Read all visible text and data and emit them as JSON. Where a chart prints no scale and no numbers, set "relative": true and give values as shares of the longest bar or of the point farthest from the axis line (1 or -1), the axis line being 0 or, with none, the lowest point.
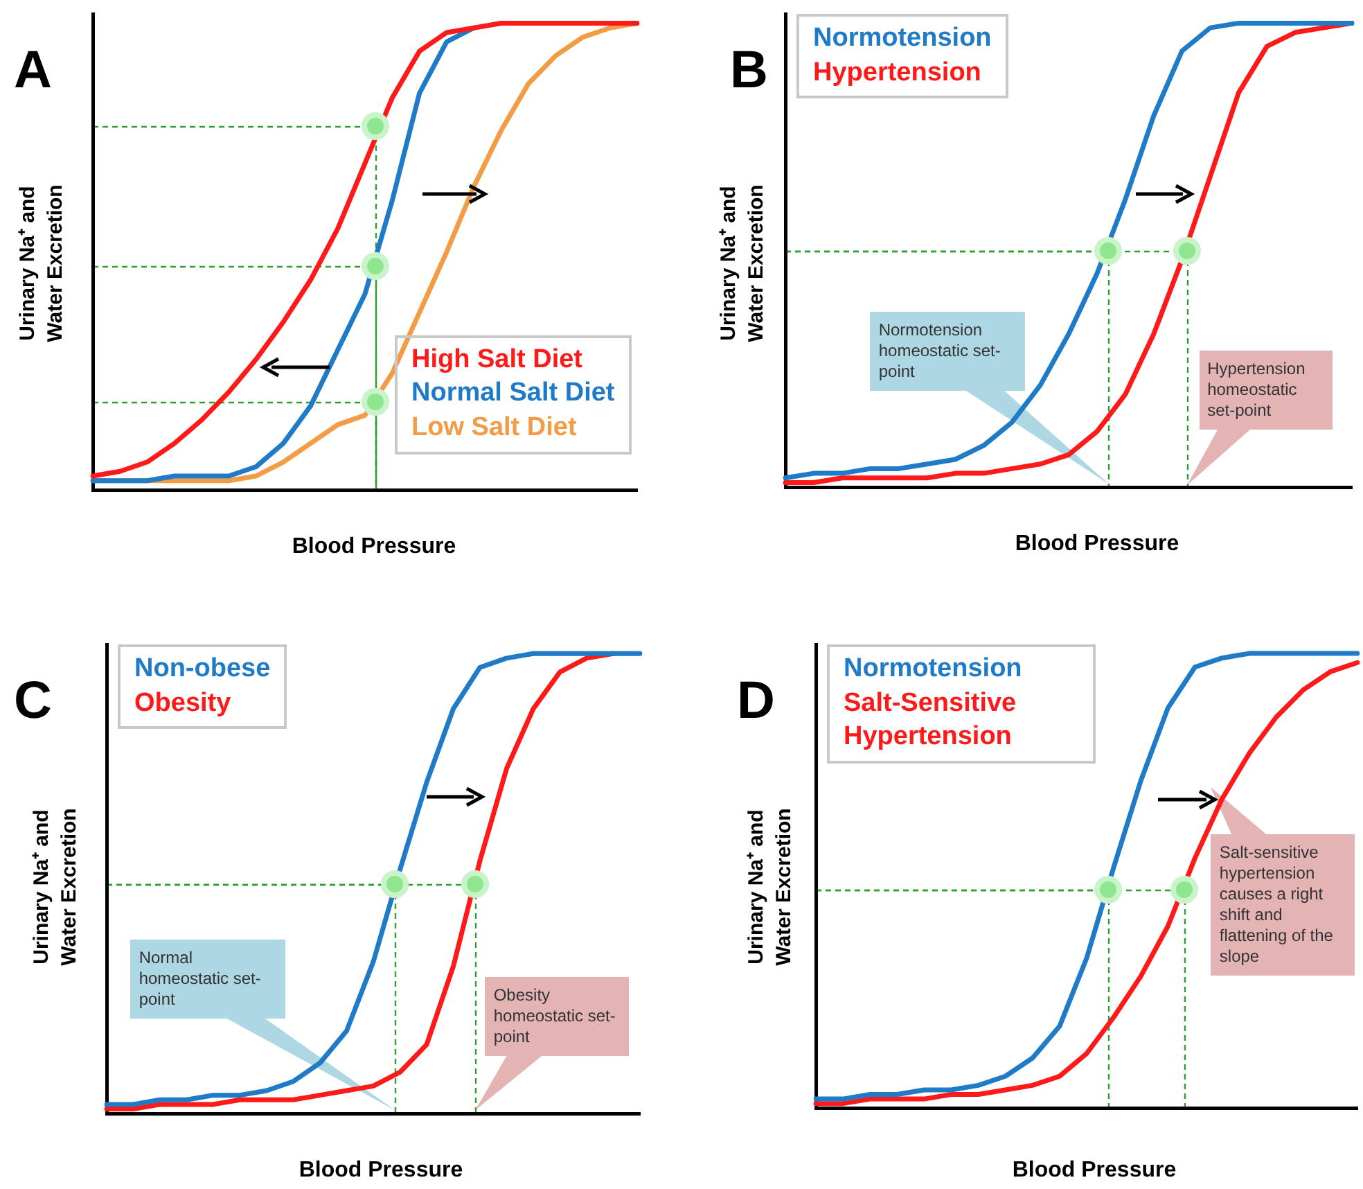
{
  "chart_data": [
    {
      "type": "line",
      "title": "A",
      "xlabel": "Blood Pressure",
      "ylabel": "Urinary Na⁺ and Water Excretion",
      "relative": true,
      "categories": [
        null,
        null,
        null,
        null,
        null,
        null,
        null,
        null,
        null,
        null,
        null,
        null,
        null,
        null,
        null,
        null,
        null,
        null,
        null,
        null,
        null
      ],
      "series": [
        {
          "name": "High Salt Diet",
          "color": "#ff1a1a",
          "values": [
            0.03,
            0.04,
            0.06,
            0.1,
            0.15,
            0.21,
            0.28,
            0.36,
            0.45,
            0.56,
            0.7,
            0.84,
            0.94,
            0.98,
            0.99,
            1,
            1,
            1,
            1,
            1,
            1
          ]
        },
        {
          "name": "Normal Salt Diet",
          "color": "#1f7bc8",
          "values": [
            0.02,
            0.02,
            0.02,
            0.03,
            0.03,
            0.03,
            0.05,
            0.1,
            0.18,
            0.3,
            0.42,
            0.62,
            0.85,
            0.96,
            0.99,
            null,
            null,
            null,
            null,
            null,
            null
          ]
        },
        {
          "name": "Low Salt Diet",
          "color": "#f39c45",
          "values": [
            0.02,
            0.02,
            0.02,
            0.02,
            0.02,
            0.02,
            0.03,
            0.06,
            0.1,
            0.14,
            0.16,
            0.25,
            0.38,
            0.51,
            0.65,
            0.77,
            0.87,
            0.93,
            0.97,
            0.99,
            1
          ]
        }
      ]
    },
    {
      "type": "line",
      "title": "B",
      "xlabel": "Blood Pressure",
      "ylabel": "Urinary Na⁺ and Water Excretion",
      "relative": true,
      "categories": [
        null,
        null,
        null,
        null,
        null,
        null,
        null,
        null,
        null,
        null,
        null,
        null,
        null,
        null,
        null,
        null,
        null,
        null,
        null,
        null,
        null
      ],
      "series": [
        {
          "name": "Normotension",
          "color": "#1f7bc8",
          "values": [
            0.02,
            0.03,
            0.03,
            0.04,
            0.04,
            0.05,
            0.06,
            0.09,
            0.14,
            0.22,
            0.33,
            0.46,
            0.62,
            0.8,
            0.94,
            0.99,
            1,
            1,
            1,
            1,
            1
          ]
        },
        {
          "name": "Hypertension",
          "color": "#ff1a1a",
          "values": [
            0.01,
            0.01,
            0.02,
            0.02,
            0.02,
            0.02,
            0.03,
            0.03,
            0.04,
            0.05,
            0.07,
            0.12,
            0.2,
            0.33,
            0.49,
            0.67,
            0.85,
            0.95,
            0.98,
            0.99,
            1
          ]
        }
      ],
      "annotations": [
        "Normotension homeostatic set-point",
        "Hypertension homeostatic set-point"
      ]
    },
    {
      "type": "line",
      "title": "C",
      "xlabel": "Blood Pressure",
      "ylabel": "Urinary Na⁺ and Water Excretion",
      "relative": true,
      "categories": [
        null,
        null,
        null,
        null,
        null,
        null,
        null,
        null,
        null,
        null,
        null,
        null,
        null,
        null,
        null,
        null,
        null,
        null,
        null,
        null,
        null
      ],
      "series": [
        {
          "name": "Non-obese",
          "color": "#1f7bc8",
          "values": [
            0.02,
            0.02,
            0.03,
            0.03,
            0.04,
            0.04,
            0.05,
            0.07,
            0.11,
            0.18,
            0.33,
            0.53,
            0.72,
            0.88,
            0.97,
            0.99,
            1,
            1,
            1,
            1,
            1
          ]
        },
        {
          "name": "Obesity",
          "color": "#ff1a1a",
          "values": [
            0.01,
            0.01,
            0.02,
            0.02,
            0.02,
            0.03,
            0.03,
            0.03,
            0.04,
            0.05,
            0.06,
            0.09,
            0.15,
            0.32,
            0.55,
            0.75,
            0.88,
            0.96,
            0.99,
            1,
            null
          ]
        }
      ],
      "annotations": [
        "Normal homeostatic set-point",
        "Obesity homeostatic set-point"
      ]
    },
    {
      "type": "line",
      "title": "D",
      "xlabel": "Blood Pressure",
      "ylabel": "Urinary Na⁺ and Water Excretion",
      "relative": true,
      "categories": [
        null,
        null,
        null,
        null,
        null,
        null,
        null,
        null,
        null,
        null,
        null,
        null,
        null,
        null,
        null,
        null,
        null,
        null,
        null,
        null,
        null
      ],
      "series": [
        {
          "name": "Normotension",
          "color": "#1f7bc8",
          "values": [
            0.02,
            0.02,
            0.03,
            0.03,
            0.04,
            0.04,
            0.05,
            0.07,
            0.11,
            0.18,
            0.33,
            0.53,
            0.72,
            0.88,
            0.97,
            0.99,
            1,
            1,
            1,
            1,
            1
          ]
        },
        {
          "name": "Salt-Sensitive Hypertension",
          "color": "#ff1a1a",
          "values": [
            0.01,
            0.01,
            0.02,
            0.02,
            0.02,
            0.03,
            0.03,
            0.04,
            0.05,
            0.07,
            0.12,
            0.2,
            0.29,
            0.4,
            0.55,
            0.68,
            0.78,
            0.86,
            0.92,
            0.96,
            0.98
          ]
        }
      ],
      "annotations": [
        "Salt-sensitive hypertension causes a right shift and flattening of the slope"
      ]
    }
  ]
}
